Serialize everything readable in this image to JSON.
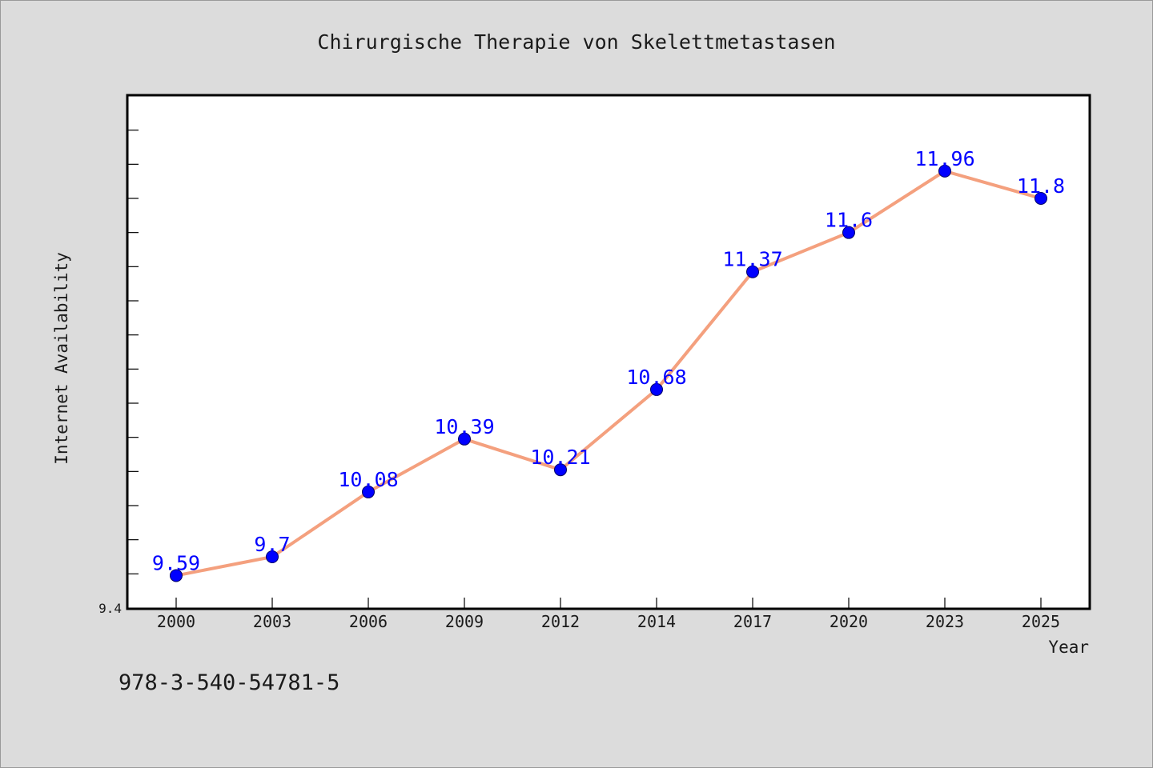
{
  "chart_data": {
    "type": "line",
    "title": "Chirurgische Therapie von Skelettmetastasen",
    "xlabel": "Year",
    "ylabel": "Internet Availability",
    "categories": [
      "2000",
      "2003",
      "2006",
      "2009",
      "2012",
      "2014",
      "2017",
      "2020",
      "2023",
      "2025"
    ],
    "series": [
      {
        "values": [
          9.59,
          9.7,
          10.08,
          10.39,
          10.21,
          10.68,
          11.37,
          11.6,
          11.96,
          11.8
        ],
        "data_labels": [
          "9.59",
          "9.7",
          "10.08",
          "10.39",
          "10.21",
          "10.68",
          "11.37",
          "11.6",
          "11.96",
          "11.8"
        ]
      }
    ],
    "ylim": [
      9.4,
      12.4
    ],
    "y_tick_label": "9.4",
    "grid": false,
    "legend": "none",
    "colors": {
      "line": "#f4a07e",
      "marker": "#0000ff",
      "data_label": "#0000ff",
      "background": "#dcdcdc",
      "plot_background": "#ffffff"
    }
  },
  "footnote": "978-3-540-54781-5"
}
